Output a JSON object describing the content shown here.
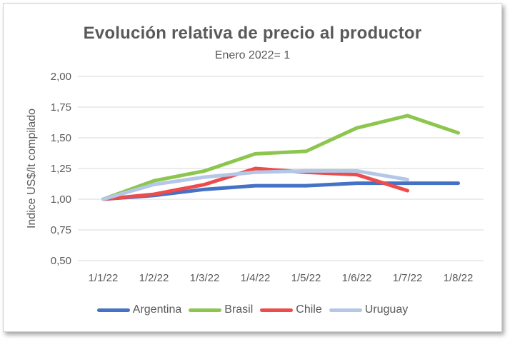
{
  "chart_data": {
    "type": "line",
    "title": "Evolución relativa de precio al productor",
    "subtitle": "Enero 2022= 1",
    "ylabel": "Indice US$/lt compilado",
    "xlabel": "",
    "categories": [
      "1/1/22",
      "1/2/22",
      "1/3/22",
      "1/4/22",
      "1/5/22",
      "1/6/22",
      "1/7/22",
      "1/8/22"
    ],
    "yticks": [
      "0,50",
      "0,75",
      "1,00",
      "1,25",
      "1,50",
      "1,75",
      "2,00"
    ],
    "ylim": [
      0.5,
      2.0
    ],
    "grid": true,
    "legend_position": "bottom",
    "series": [
      {
        "name": "Argentina",
        "color": "#4472C4",
        "values": [
          1.0,
          1.03,
          1.08,
          1.11,
          1.11,
          1.13,
          1.13,
          1.13
        ]
      },
      {
        "name": "Brasil",
        "color": "#8CC64F",
        "values": [
          1.0,
          1.15,
          1.23,
          1.37,
          1.39,
          1.58,
          1.68,
          1.54
        ]
      },
      {
        "name": "Chile",
        "color": "#EE4B4B",
        "values": [
          1.0,
          1.04,
          1.12,
          1.25,
          1.22,
          1.2,
          1.07,
          null
        ]
      },
      {
        "name": "Uruguay",
        "color": "#B4C7E7",
        "values": [
          1.0,
          1.12,
          1.18,
          1.22,
          1.23,
          1.23,
          1.16,
          null
        ]
      }
    ]
  }
}
